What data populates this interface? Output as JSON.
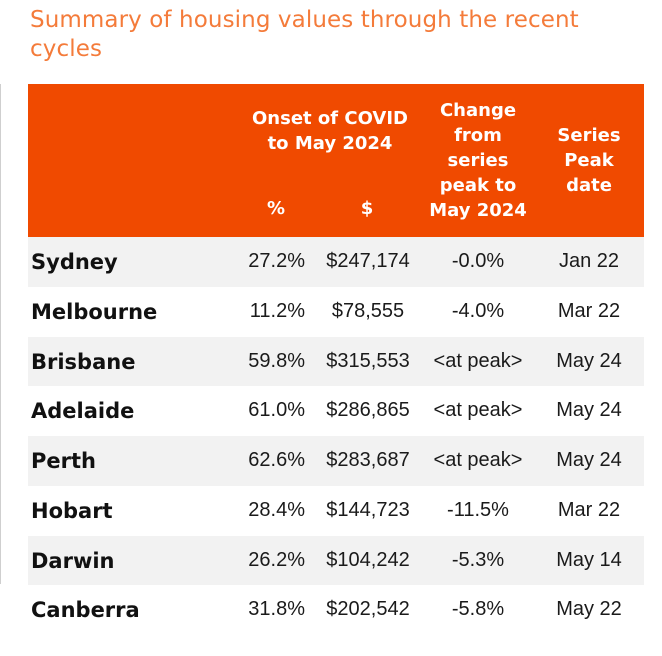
{
  "title": "Summary of housing values through the recent cycles",
  "headers": {
    "onset_line1": "Onset of COVID",
    "onset_line2": "to May 2024",
    "pct": "%",
    "dollar": "$",
    "change_line1": "Change",
    "change_line2": "from",
    "change_line3": "series",
    "change_line4": "peak to",
    "change_line5": "May 2024",
    "peak_line1": "Series",
    "peak_line2": "Peak",
    "peak_line3": "date"
  },
  "colors": {
    "title": "#f47b3a",
    "header_bg": "#f04a00",
    "header_text": "#ffffff",
    "alt_row": "#f2f2f2"
  },
  "rows": [
    {
      "city": "Sydney",
      "pct": "27.2%",
      "dollar": "$247,174",
      "change": "-0.0%",
      "peak": "Jan 22"
    },
    {
      "city": "Melbourne",
      "pct": "11.2%",
      "dollar": "$78,555",
      "change": "-4.0%",
      "peak": "Mar 22"
    },
    {
      "city": "Brisbane",
      "pct": "59.8%",
      "dollar": "$315,553",
      "change": "<at peak>",
      "peak": "May 24"
    },
    {
      "city": "Adelaide",
      "pct": "61.0%",
      "dollar": "$286,865",
      "change": "<at peak>",
      "peak": "May 24"
    },
    {
      "city": "Perth",
      "pct": "62.6%",
      "dollar": "$283,687",
      "change": "<at peak>",
      "peak": "May 24"
    },
    {
      "city": "Hobart",
      "pct": "28.4%",
      "dollar": "$144,723",
      "change": "-11.5%",
      "peak": "Mar 22"
    },
    {
      "city": "Darwin",
      "pct": "26.2%",
      "dollar": "$104,242",
      "change": "-5.3%",
      "peak": "May 14"
    },
    {
      "city": "Canberra",
      "pct": "31.8%",
      "dollar": "$202,542",
      "change": "-5.8%",
      "peak": "May 22"
    }
  ]
}
